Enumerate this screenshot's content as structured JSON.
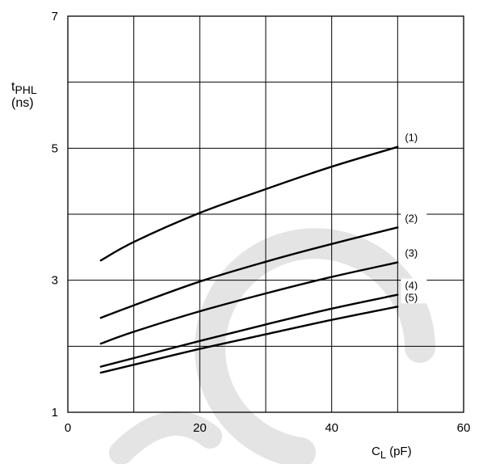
{
  "chart_data": {
    "type": "line",
    "title": "",
    "x_axis": {
      "range": [
        0,
        60
      ],
      "ticks": [
        0,
        20,
        40,
        60
      ],
      "gridlines": [
        0,
        10,
        20,
        30,
        40,
        50,
        60
      ],
      "label_main": "C",
      "label_sub": "L",
      "label_unit": "(pF)"
    },
    "y_axis": {
      "range": [
        1,
        7
      ],
      "ticks": [
        1,
        3,
        5,
        7
      ],
      "gridlines": [
        1,
        2,
        3,
        4,
        5,
        6,
        7
      ],
      "label_main": "t",
      "label_sub": "PHL",
      "label_unit": "(ns)"
    },
    "grid": true,
    "series": [
      {
        "name": "(1)",
        "x": [
          5,
          10,
          20,
          30,
          40,
          50
        ],
        "y": [
          3.3,
          3.58,
          4.02,
          4.38,
          4.72,
          5.02
        ]
      },
      {
        "name": "(2)",
        "x": [
          5,
          10,
          20,
          30,
          40,
          50
        ],
        "y": [
          2.43,
          2.62,
          2.98,
          3.28,
          3.55,
          3.8
        ]
      },
      {
        "name": "(3)",
        "x": [
          5,
          10,
          20,
          30,
          40,
          50
        ],
        "y": [
          2.04,
          2.22,
          2.53,
          2.8,
          3.05,
          3.27
        ]
      },
      {
        "name": "(4)",
        "x": [
          5,
          10,
          20,
          30,
          40,
          50
        ],
        "y": [
          1.69,
          1.82,
          2.08,
          2.33,
          2.57,
          2.78
        ]
      },
      {
        "name": "(5)",
        "x": [
          5,
          10,
          20,
          30,
          40,
          50
        ],
        "y": [
          1.6,
          1.72,
          1.96,
          2.18,
          2.4,
          2.6
        ]
      }
    ]
  }
}
